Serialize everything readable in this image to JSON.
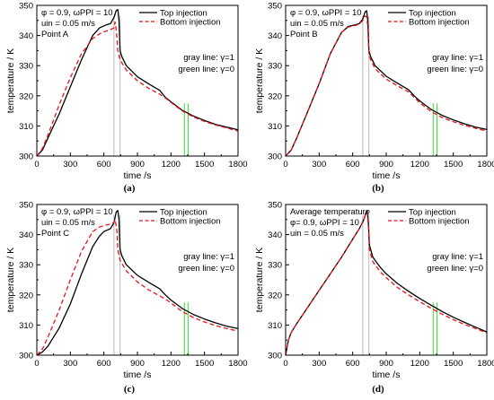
{
  "chart_data": [
    {
      "type": "line",
      "caption": "(a)",
      "xlabel": "time /s",
      "ylabel": "temperature / K",
      "xlim": [
        0,
        1800
      ],
      "ylim": [
        300,
        350
      ],
      "xticks": [
        0,
        300,
        600,
        900,
        1200,
        1500,
        1800
      ],
      "yticks": [
        300,
        310,
        320,
        330,
        340,
        350
      ],
      "annotations": [
        "φ = 0.9, ωPPI = 10",
        "uin = 0.05 m/s",
        "Point A"
      ],
      "note_gray": "gray  line: γ=1",
      "note_green": "green line: γ=0",
      "legend": [
        "Top injection",
        "Bottom injection"
      ],
      "markers_gray": [
        690,
        745
      ],
      "markers_green": [
        1320,
        1355
      ],
      "series": [
        {
          "name": "Top injection",
          "color": "#000000",
          "dash": false,
          "x": [
            0,
            50,
            100,
            200,
            300,
            400,
            500,
            560,
            620,
            660,
            690,
            710,
            725,
            735,
            745,
            760,
            800,
            900,
            1000,
            1100,
            1150,
            1200,
            1300,
            1400,
            1500,
            1600,
            1700,
            1800
          ],
          "y": [
            300,
            302,
            306,
            314,
            323,
            332,
            340,
            342.5,
            343.5,
            344,
            346,
            348.3,
            348.6,
            345,
            335,
            333,
            330,
            326.3,
            324,
            321.8,
            319.5,
            318,
            315.2,
            313.3,
            311.8,
            310.5,
            309.6,
            308.7
          ]
        },
        {
          "name": "Bottom injection",
          "color": "#e8141e",
          "dash": true,
          "x": [
            0,
            50,
            100,
            200,
            300,
            400,
            500,
            560,
            620,
            660,
            690,
            700,
            710,
            725,
            745,
            760,
            800,
            900,
            1000,
            1100,
            1150,
            1200,
            1300,
            1400,
            1500,
            1600,
            1700,
            1800
          ],
          "y": [
            300,
            302.5,
            307,
            317,
            326,
            334,
            339,
            340.5,
            341.5,
            342,
            342.5,
            344.5,
            342,
            335,
            332,
            331,
            328.5,
            325,
            322.5,
            320.5,
            319.3,
            317.8,
            315,
            313,
            311.5,
            310.3,
            309.3,
            308.3
          ]
        }
      ]
    },
    {
      "type": "line",
      "caption": "(b)",
      "xlabel": "time /s",
      "ylabel": "temperature / K",
      "xlim": [
        0,
        1800
      ],
      "ylim": [
        300,
        350
      ],
      "xticks": [
        0,
        300,
        600,
        900,
        1200,
        1500,
        1800
      ],
      "yticks": [
        300,
        310,
        320,
        330,
        340,
        350
      ],
      "annotations": [
        "φ = 0.9, ωPPI = 10",
        "uin = 0.05 m/s",
        "Point B"
      ],
      "note_gray": "gray  line: γ=1",
      "note_green": "green line: γ=0",
      "legend": [
        "Top injection",
        "Bottom injection"
      ],
      "markers_gray": [
        690,
        745
      ],
      "markers_green": [
        1320,
        1355
      ],
      "series": [
        {
          "name": "Top injection",
          "color": "#000000",
          "dash": false,
          "x": [
            0,
            50,
            100,
            200,
            300,
            400,
            500,
            560,
            620,
            660,
            690,
            710,
            725,
            735,
            745,
            760,
            800,
            900,
            1000,
            1100,
            1150,
            1200,
            1300,
            1400,
            1500,
            1600,
            1700,
            1800
          ],
          "y": [
            300,
            302,
            306,
            315,
            324,
            334,
            341,
            343,
            343.5,
            344,
            345.5,
            347.8,
            348.2,
            345,
            335,
            333,
            330,
            326.5,
            324.2,
            322,
            320,
            318.3,
            315.5,
            313.5,
            312,
            310.7,
            309.6,
            308.8
          ]
        },
        {
          "name": "Bottom injection",
          "color": "#e8141e",
          "dash": true,
          "x": [
            0,
            50,
            100,
            200,
            300,
            400,
            500,
            560,
            620,
            660,
            690,
            710,
            725,
            735,
            745,
            760,
            800,
            900,
            1000,
            1100,
            1150,
            1200,
            1300,
            1400,
            1500,
            1600,
            1700,
            1800
          ],
          "y": [
            300,
            302,
            306,
            315,
            324,
            334,
            341,
            342.8,
            343.3,
            343.8,
            345,
            346.5,
            346.2,
            343,
            334,
            332,
            329,
            325.5,
            323.3,
            321.3,
            319.5,
            317.7,
            314.8,
            312.8,
            311.4,
            310.2,
            309.2,
            308.3
          ]
        }
      ]
    },
    {
      "type": "line",
      "caption": "(c)",
      "xlabel": "time /s",
      "ylabel": "temperature / K",
      "xlim": [
        0,
        1800
      ],
      "ylim": [
        300,
        350
      ],
      "xticks": [
        0,
        300,
        600,
        900,
        1200,
        1500,
        1800
      ],
      "yticks": [
        300,
        310,
        320,
        330,
        340,
        350
      ],
      "annotations": [
        "φ = 0.9, ωPPI = 10",
        "uin = 0.05 m/s",
        "Point C"
      ],
      "note_gray": "gray  line: γ=1",
      "note_green": "green line: γ=0",
      "legend": [
        "Top injection",
        "Bottom injection"
      ],
      "markers_gray": [
        690,
        745
      ],
      "markers_green": [
        1320,
        1355
      ],
      "series": [
        {
          "name": "Top injection",
          "color": "#000000",
          "dash": false,
          "x": [
            0,
            50,
            100,
            200,
            300,
            400,
            500,
            560,
            600,
            660,
            690,
            710,
            725,
            735,
            745,
            760,
            800,
            900,
            1000,
            1100,
            1150,
            1200,
            1300,
            1400,
            1500,
            1600,
            1700,
            1800
          ],
          "y": [
            300,
            301,
            303,
            309,
            317,
            327,
            336,
            339.5,
            341,
            342,
            344,
            347.5,
            348,
            345,
            335,
            333,
            330,
            326.5,
            324.2,
            322,
            320,
            318.3,
            315.5,
            313.5,
            312,
            310.7,
            309.6,
            308.8
          ]
        },
        {
          "name": "Bottom injection",
          "color": "#e8141e",
          "dash": true,
          "x": [
            0,
            50,
            100,
            200,
            300,
            400,
            500,
            560,
            600,
            660,
            690,
            700,
            715,
            725,
            745,
            760,
            800,
            900,
            1000,
            1100,
            1150,
            1200,
            1300,
            1400,
            1500,
            1600,
            1700,
            1800
          ],
          "y": [
            300,
            302,
            306,
            315,
            325,
            334.5,
            341,
            342.5,
            343,
            343.5,
            344,
            345,
            342,
            335,
            331.5,
            330.5,
            328,
            324.3,
            321.7,
            319.6,
            318.6,
            317.3,
            314.5,
            312.5,
            311,
            309.8,
            308.8,
            308
          ]
        }
      ]
    },
    {
      "type": "line",
      "caption": "(d)",
      "xlabel": "time /s",
      "ylabel": "temperature / K",
      "xlim": [
        0,
        1800
      ],
      "ylim": [
        300,
        350
      ],
      "xticks": [
        0,
        300,
        600,
        900,
        1200,
        1500,
        1800
      ],
      "yticks": [
        300,
        310,
        320,
        330,
        340,
        350
      ],
      "annotations": [
        "Average temperature",
        "φ= 0.9, ωPPI = 10",
        "uin = 0.05 m/s"
      ],
      "note_gray": "gray  line: γ=1",
      "note_green": "green line: γ=0",
      "legend": [
        "Top injection",
        "Bottom injection"
      ],
      "markers_gray": [
        690,
        745
      ],
      "markers_green": [
        1320,
        1355
      ],
      "series": [
        {
          "name": "Top injection",
          "color": "#000000",
          "dash": false,
          "x": [
            0,
            25,
            50,
            100,
            200,
            300,
            400,
            500,
            600,
            660,
            700,
            720,
            730,
            740,
            750,
            780,
            850,
            900,
            1000,
            1100,
            1200,
            1300,
            1400,
            1500,
            1600,
            1700,
            1800
          ],
          "y": [
            300,
            305,
            307.5,
            310.5,
            316,
            321.5,
            327,
            332.5,
            338.5,
            342,
            345,
            347.5,
            348,
            344,
            336.5,
            332.5,
            329,
            327,
            323.8,
            321.2,
            318.8,
            316.6,
            314.5,
            312.6,
            310.9,
            309.3,
            307.7
          ]
        },
        {
          "name": "Bottom injection",
          "color": "#e8141e",
          "dash": true,
          "x": [
            0,
            25,
            50,
            100,
            200,
            300,
            400,
            500,
            600,
            660,
            700,
            720,
            730,
            740,
            750,
            780,
            850,
            900,
            1000,
            1100,
            1200,
            1300,
            1400,
            1500,
            1600,
            1700,
            1800
          ],
          "y": [
            300,
            305,
            307.5,
            310.5,
            316,
            321.5,
            327,
            332.5,
            338.5,
            342,
            345,
            347.3,
            347.5,
            343,
            335,
            331,
            327.5,
            325.7,
            322.5,
            320,
            317.7,
            315.6,
            313.6,
            311.8,
            310.2,
            308.8,
            307.4
          ]
        }
      ]
    }
  ]
}
